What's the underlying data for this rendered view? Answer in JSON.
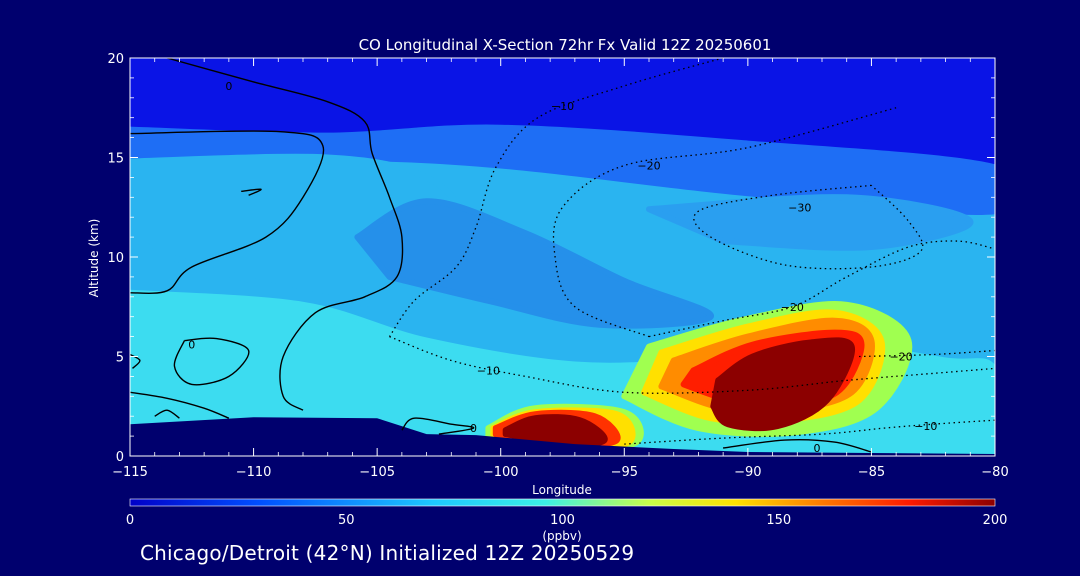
{
  "chart_data": {
    "type": "heatmap",
    "title": "CO Longitudinal X-Section 72hr  Fx Valid 12Z 20250601",
    "xlabel": "Longitude",
    "ylabel": "Altitude (km)",
    "xlim": [
      -115,
      -80
    ],
    "ylim": [
      0,
      20
    ],
    "x_ticks": [
      -115,
      -110,
      -105,
      -100,
      -95,
      -90,
      -85,
      -80
    ],
    "x_tick_labels": [
      "−115",
      "−110",
      "−105",
      "−100",
      "−95",
      "−90",
      "−85",
      "−80"
    ],
    "y_ticks": [
      0,
      5,
      10,
      15,
      20
    ],
    "y_tick_labels": [
      "0",
      "5",
      "10",
      "15",
      "20"
    ],
    "grid": false,
    "colorbar": {
      "min": 0,
      "max": 200,
      "ticks": [
        0,
        50,
        100,
        150,
        200
      ],
      "tick_labels": [
        "0",
        "50",
        "100",
        "150",
        "200"
      ],
      "unit_label": "(ppbv)",
      "colors": [
        "#0000c8",
        "#0050ff",
        "#1ec8ff",
        "#3cf0e6",
        "#c8ff4a",
        "#ffe000",
        "#ff7a00",
        "#ff1a00",
        "#8c0000"
      ]
    },
    "fill_regions": [
      {
        "level": 20,
        "color": "#0a14e6",
        "poly": [
          [
            -115,
            20
          ],
          [
            -80,
            20
          ],
          [
            -80,
            14.5
          ],
          [
            -90,
            15.8
          ],
          [
            -100,
            16.6
          ],
          [
            -107,
            16.2
          ],
          [
            -115,
            16.5
          ]
        ]
      },
      {
        "level": 40,
        "color": "#1e6ef5",
        "poly": [
          [
            -115,
            16.4
          ],
          [
            -107,
            16.1
          ],
          [
            -100,
            16.5
          ],
          [
            -90,
            15.7
          ],
          [
            -80,
            14.5
          ],
          [
            -80,
            12.3
          ],
          [
            -90,
            13.2
          ],
          [
            -100,
            14.6
          ],
          [
            -107,
            15
          ],
          [
            -115,
            14.8
          ]
        ]
      },
      {
        "level": 65,
        "color": "#2ab4f0",
        "poly": [
          [
            -115,
            14.8
          ],
          [
            -107,
            15
          ],
          [
            -103,
            14
          ],
          [
            -101,
            11.5
          ],
          [
            -99.5,
            8.8
          ],
          [
            -102,
            7.4
          ],
          [
            -108,
            8.2
          ],
          [
            -115,
            10.6
          ]
        ]
      },
      {
        "level": 50,
        "color": "#2590ea",
        "poly": [
          [
            -105.8,
            11
          ],
          [
            -103,
            12.8
          ],
          [
            -99,
            11.2
          ],
          [
            -95,
            8.8
          ],
          [
            -91.5,
            7
          ],
          [
            -96,
            6.6
          ],
          [
            -100.5,
            7.8
          ],
          [
            -104.5,
            9
          ]
        ]
      },
      {
        "level": 60,
        "color": "#2a9ff0",
        "poly": [
          [
            -94,
            12.4
          ],
          [
            -86,
            13
          ],
          [
            -81,
            11.8
          ],
          [
            -85,
            10.5
          ],
          [
            -91,
            10.8
          ]
        ]
      },
      {
        "level": 80,
        "color": "#3cdcf0",
        "poly": [
          [
            -115,
            8.2
          ],
          [
            -108,
            7.6
          ],
          [
            -103,
            5.8
          ],
          [
            -97,
            4.6
          ],
          [
            -92,
            4.8
          ],
          [
            -87,
            5.6
          ],
          [
            -82,
            4.8
          ],
          [
            -80,
            4.3
          ],
          [
            -80,
            0
          ],
          [
            -115,
            0
          ]
        ]
      },
      {
        "level": 110,
        "color": "#a0ff50",
        "poly": [
          [
            -94,
            5.5
          ],
          [
            -90,
            6.9
          ],
          [
            -86,
            7.6
          ],
          [
            -83.5,
            5.8
          ],
          [
            -84.8,
            2.4
          ],
          [
            -88,
            1.2
          ],
          [
            -92,
            1.4
          ],
          [
            -95,
            3
          ]
        ]
      },
      {
        "level": 125,
        "color": "#ffe000",
        "poly": [
          [
            -93.5,
            5.2
          ],
          [
            -90,
            6.5
          ],
          [
            -86.5,
            7.2
          ],
          [
            -84.6,
            5.8
          ],
          [
            -85.5,
            2.8
          ],
          [
            -88.5,
            1.8
          ],
          [
            -91.5,
            1.9
          ],
          [
            -94.2,
            3.2
          ]
        ]
      },
      {
        "level": 140,
        "color": "#ff8c00",
        "poly": [
          [
            -93,
            4.8
          ],
          [
            -90,
            6
          ],
          [
            -86.5,
            6.8
          ],
          [
            -85,
            5.8
          ],
          [
            -85.8,
            3.2
          ],
          [
            -88.5,
            2.3
          ],
          [
            -91,
            2.4
          ],
          [
            -93.5,
            3.5
          ]
        ]
      },
      {
        "level": 160,
        "color": "#ff1e00",
        "poly": [
          [
            -92.2,
            4.3
          ],
          [
            -89.8,
            5.6
          ],
          [
            -86.5,
            6.2
          ],
          [
            -85.4,
            5.6
          ],
          [
            -86.4,
            3.2
          ],
          [
            -88.8,
            2.6
          ],
          [
            -90.7,
            2.8
          ],
          [
            -92.6,
            3.6
          ]
        ]
      },
      {
        "level": 180,
        "color": "#8c0000",
        "poly": [
          [
            -91.2,
            3.8
          ],
          [
            -89.8,
            5
          ],
          [
            -87.5,
            5.7
          ],
          [
            -85.8,
            5.5
          ],
          [
            -86.8,
            2.8
          ],
          [
            -88.8,
            1.5
          ],
          [
            -90.8,
            1.6
          ],
          [
            -91.4,
            2.5
          ]
        ]
      },
      {
        "level": 110,
        "color": "#a0ff50",
        "poly": [
          [
            -100.5,
            1.4
          ],
          [
            -98.6,
            2.4
          ],
          [
            -95,
            2.2
          ],
          [
            -94.5,
            0.7
          ],
          [
            -97,
            0.5
          ],
          [
            -100.5,
            0.9
          ]
        ]
      },
      {
        "level": 125,
        "color": "#ffe000",
        "poly": [
          [
            -100.3,
            1.4
          ],
          [
            -98.6,
            2.2
          ],
          [
            -95.3,
            2.1
          ],
          [
            -94.8,
            0.7
          ],
          [
            -97,
            0.6
          ],
          [
            -100.3,
            1.0
          ]
        ]
      },
      {
        "level": 150,
        "color": "#ff3200",
        "poly": [
          [
            -100.2,
            1.4
          ],
          [
            -98.6,
            2.1
          ],
          [
            -96.2,
            2.0
          ],
          [
            -95.3,
            0.8
          ],
          [
            -97.2,
            0.6
          ],
          [
            -100.2,
            1.1
          ]
        ]
      },
      {
        "level": 180,
        "color": "#8c0000",
        "poly": [
          [
            -99.8,
            1.3
          ],
          [
            -98.6,
            1.9
          ],
          [
            -96.8,
            1.8
          ],
          [
            -95.8,
            0.8
          ],
          [
            -97.4,
            0.6
          ],
          [
            -99.8,
            1.1
          ]
        ]
      }
    ],
    "terrain": [
      [
        -115,
        0
      ],
      [
        -115,
        1.6
      ],
      [
        -110,
        1.95
      ],
      [
        -105,
        1.9
      ],
      [
        -103,
        1.1
      ],
      [
        -101,
        1.05
      ],
      [
        -97,
        0.6
      ],
      [
        -93,
        0.35
      ],
      [
        -90,
        0.2
      ],
      [
        -85,
        0.15
      ],
      [
        -80,
        0.1
      ],
      [
        -80,
        0
      ]
    ],
    "contours": [
      {
        "value": 0,
        "style": "solid",
        "label": "0",
        "label_at": [
          -111,
          18.6
        ],
        "points": [
          [
            -113.5,
            20
          ],
          [
            -110,
            18.8
          ],
          [
            -107,
            17.8
          ],
          [
            -105.5,
            16.8
          ],
          [
            -105.2,
            15.2
          ],
          [
            -104.5,
            13
          ],
          [
            -104,
            11
          ],
          [
            -104.2,
            9
          ],
          [
            -105.5,
            8
          ],
          [
            -107.5,
            7.2
          ],
          [
            -108.8,
            5
          ],
          [
            -108.8,
            3
          ],
          [
            -108,
            2.3
          ]
        ]
      },
      {
        "value": 0,
        "style": "solid",
        "label": "",
        "label_at": null,
        "points": [
          [
            -115,
            16.2
          ],
          [
            -109,
            16.3
          ],
          [
            -107.2,
            15.6
          ],
          [
            -108,
            13
          ],
          [
            -109.5,
            11
          ],
          [
            -112.5,
            9.5
          ],
          [
            -113.5,
            8.3
          ],
          [
            -115,
            8.2
          ]
        ]
      },
      {
        "value": 0,
        "style": "solid",
        "label": "0",
        "label_at": [
          -112.5,
          5.6
        ],
        "points": [
          [
            -112.8,
            5.8
          ],
          [
            -111.5,
            5.9
          ],
          [
            -110.2,
            5.3
          ],
          [
            -111,
            4.0
          ],
          [
            -112.5,
            3.6
          ],
          [
            -113.2,
            4.5
          ],
          [
            -112.8,
            5.8
          ]
        ]
      },
      {
        "value": 0,
        "style": "solid",
        "label": "",
        "label_at": null,
        "points": [
          [
            -115,
            5.1
          ],
          [
            -114.6,
            4.8
          ],
          [
            -114.9,
            4.4
          ]
        ]
      },
      {
        "value": 0,
        "style": "solid",
        "label": "",
        "label_at": null,
        "points": [
          [
            -115,
            3.2
          ],
          [
            -113.5,
            2.9
          ],
          [
            -112,
            2.4
          ],
          [
            -111,
            1.9
          ]
        ]
      },
      {
        "value": 0,
        "style": "solid",
        "label": "",
        "label_at": null,
        "points": [
          [
            -114,
            2.0
          ],
          [
            -113.5,
            2.3
          ],
          [
            -113,
            1.9
          ]
        ]
      },
      {
        "value": 0,
        "style": "solid",
        "label": "",
        "label_at": null,
        "points": [
          [
            -110.5,
            13.3
          ],
          [
            -109.7,
            13.4
          ],
          [
            -110.2,
            13.1
          ]
        ]
      },
      {
        "value": 0,
        "style": "solid",
        "label": "0",
        "label_at": [
          -101.1,
          1.4
        ],
        "points": [
          [
            -104,
            1.3
          ],
          [
            -103.5,
            1.9
          ],
          [
            -102,
            1.6
          ],
          [
            -101.1,
            1.4
          ],
          [
            -102.5,
            1.1
          ]
        ]
      },
      {
        "value": 0,
        "style": "solid",
        "label": "0",
        "label_at": [
          -87.2,
          0.4
        ],
        "points": [
          [
            -91,
            0.4
          ],
          [
            -88.5,
            0.8
          ],
          [
            -86.5,
            0.7
          ],
          [
            -85,
            0.2
          ]
        ]
      },
      {
        "value": -10,
        "style": "dotted",
        "label": "−10",
        "label_at": [
          -97.5,
          17.6
        ],
        "points": [
          [
            -91,
            20
          ],
          [
            -95,
            18.6
          ],
          [
            -98.5,
            17
          ],
          [
            -100.2,
            14.5
          ],
          [
            -101,
            11.5
          ],
          [
            -101.8,
            9.5
          ],
          [
            -103.5,
            7.8
          ],
          [
            -104.5,
            6
          ]
        ]
      },
      {
        "value": -10,
        "style": "dotted",
        "label": "−10",
        "label_at": [
          -100.5,
          4.3
        ],
        "points": [
          [
            -104.5,
            6
          ],
          [
            -102,
            4.8
          ],
          [
            -99,
            4
          ],
          [
            -95,
            3.2
          ],
          [
            -90,
            3.3
          ],
          [
            -86,
            3.8
          ],
          [
            -82,
            4.2
          ],
          [
            -80,
            4.4
          ]
        ]
      },
      {
        "value": -20,
        "style": "dotted",
        "label": "−20",
        "label_at": [
          -94,
          14.6
        ],
        "points": [
          [
            -84,
            17.5
          ],
          [
            -90,
            15.5
          ],
          [
            -95,
            14.6
          ],
          [
            -97.5,
            12.5
          ],
          [
            -97.8,
            10
          ],
          [
            -97,
            7.5
          ],
          [
            -94,
            6
          ]
        ]
      },
      {
        "value": -20,
        "style": "dotted",
        "label": "−20",
        "label_at": [
          -88.2,
          7.5
        ],
        "points": [
          [
            -94,
            6
          ],
          [
            -91,
            6.8
          ],
          [
            -88.2,
            7.5
          ],
          [
            -86,
            9
          ],
          [
            -83.5,
            10.5
          ],
          [
            -81.5,
            10.8
          ],
          [
            -80,
            10.4
          ]
        ]
      },
      {
        "value": -30,
        "style": "dotted",
        "label": "−30",
        "label_at": [
          -87.9,
          12.5
        ],
        "points": [
          [
            -85,
            13.6
          ],
          [
            -89,
            13.1
          ],
          [
            -92,
            12.3
          ],
          [
            -91.5,
            11
          ],
          [
            -88.5,
            9.6
          ],
          [
            -85,
            9.5
          ],
          [
            -83,
            10.3
          ],
          [
            -83.5,
            11.8
          ],
          [
            -85,
            13.6
          ]
        ]
      },
      {
        "value": -20,
        "style": "dotted",
        "label": "−20",
        "label_at": [
          -83.8,
          5.0
        ],
        "points": [
          [
            -85.5,
            5
          ],
          [
            -82.5,
            5.1
          ],
          [
            -80,
            5.3
          ]
        ]
      },
      {
        "value": -10,
        "style": "dotted",
        "label": "−10",
        "label_at": [
          -82.8,
          1.5
        ],
        "points": [
          [
            -95,
            0.6
          ],
          [
            -91,
            0.9
          ],
          [
            -87,
            1.1
          ],
          [
            -84.5,
            1.4
          ],
          [
            -82.5,
            1.6
          ],
          [
            -80,
            1.8
          ]
        ]
      }
    ]
  },
  "footer": {
    "text": "Chicago/Detroit (42°N) Initialized 12Z 20250529"
  }
}
